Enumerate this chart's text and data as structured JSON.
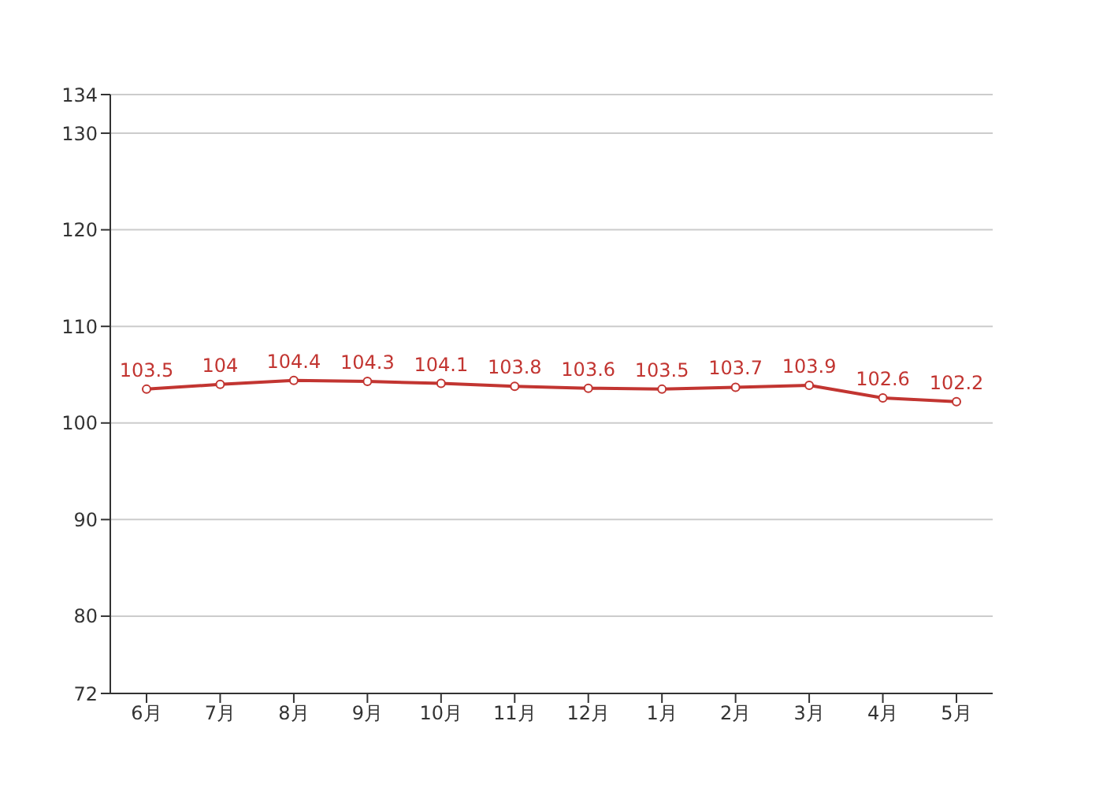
{
  "chart_data": {
    "type": "line",
    "categories": [
      "6月",
      "7月",
      "8月",
      "9月",
      "10月",
      "11月",
      "12月",
      "1月",
      "2月",
      "3月",
      "4月",
      "5月"
    ],
    "series": [
      {
        "color": "#c23531",
        "values": [
          103.5,
          104,
          104.4,
          104.3,
          104.1,
          103.8,
          103.6,
          103.5,
          103.7,
          103.9,
          102.6,
          102.2
        ]
      }
    ],
    "ylim": [
      72,
      134
    ],
    "yticks": [
      72,
      80,
      90,
      100,
      110,
      120,
      130,
      134
    ],
    "grid": "y",
    "marker": "circle",
    "line_style": "solid",
    "data_labels": true,
    "legend": false
  }
}
